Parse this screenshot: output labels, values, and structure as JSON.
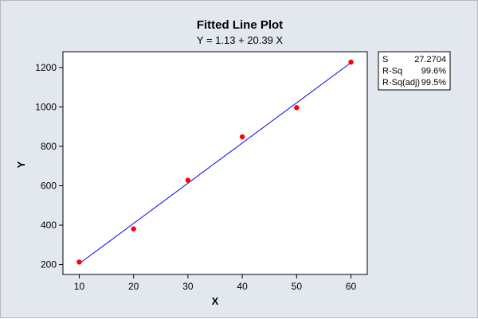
{
  "chart_data": {
    "type": "scatter",
    "title": "Fitted Line Plot",
    "subtitle": "Y =  1.13 + 20.39 X",
    "xlabel": "X",
    "ylabel": "Y",
    "xlim": [
      7,
      63
    ],
    "ylim": [
      150,
      1280
    ],
    "xticks": [
      10,
      20,
      30,
      40,
      50,
      60
    ],
    "yticks": [
      200,
      400,
      600,
      800,
      1000,
      1200
    ],
    "grid": false,
    "points": [
      {
        "x": 10,
        "y": 213
      },
      {
        "x": 20,
        "y": 381
      },
      {
        "x": 30,
        "y": 628
      },
      {
        "x": 40,
        "y": 848
      },
      {
        "x": 50,
        "y": 996
      },
      {
        "x": 60,
        "y": 1227
      }
    ],
    "fit": {
      "intercept": 1.13,
      "slope": 20.39,
      "x_range": [
        10,
        60
      ]
    },
    "point_color": "#ff0000",
    "line_color": "#0000ff",
    "stats_box": {
      "rows": [
        {
          "label": "S",
          "value": "27.2704"
        },
        {
          "label": "R-Sq",
          "value": "99.6%"
        },
        {
          "label": "R-Sq(adj)",
          "value": "99.5%"
        }
      ]
    }
  }
}
